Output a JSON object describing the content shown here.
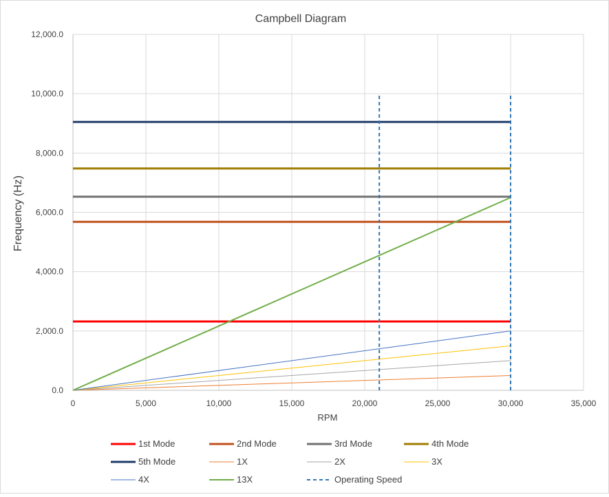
{
  "chart_data": {
    "type": "line",
    "title": "Campbell Diagram",
    "xlabel": "RPM",
    "ylabel": "Frequency (Hz)",
    "xlim": [
      0,
      35000
    ],
    "ylim": [
      0,
      12000
    ],
    "x_ticks": [
      0,
      5000,
      10000,
      15000,
      20000,
      25000,
      30000,
      35000
    ],
    "x_tick_labels": [
      "0",
      "5,000",
      "10,000",
      "15,000",
      "20,000",
      "25,000",
      "30,000",
      "35,000"
    ],
    "y_ticks": [
      0,
      2000,
      4000,
      6000,
      8000,
      10000,
      12000
    ],
    "y_tick_labels": [
      "0.0",
      "2,000.0",
      "4,000.0",
      "6,000.0",
      "8,000.0",
      "10,000.0",
      "12,000.0"
    ],
    "grid": true,
    "legend_position": "bottom",
    "series": [
      {
        "name": "1st Mode",
        "color": "#ff0000",
        "width": 3,
        "dash": "",
        "points": [
          [
            0,
            2320
          ],
          [
            30000,
            2320
          ]
        ]
      },
      {
        "name": "2nd Mode",
        "color": "#c0501c",
        "width": 3,
        "dash": "",
        "points": [
          [
            0,
            5680
          ],
          [
            30000,
            5680
          ]
        ]
      },
      {
        "name": "3rd Mode",
        "color": "#707070",
        "width": 3,
        "dash": "",
        "points": [
          [
            0,
            6530
          ],
          [
            30000,
            6530
          ]
        ]
      },
      {
        "name": "4th Mode",
        "color": "#a07c00",
        "width": 3,
        "dash": "",
        "points": [
          [
            0,
            7480
          ],
          [
            30000,
            7480
          ]
        ]
      },
      {
        "name": "5th Mode",
        "color": "#1f3a68",
        "width": 3,
        "dash": "",
        "points": [
          [
            0,
            9050
          ],
          [
            30000,
            9050
          ]
        ]
      },
      {
        "name": "1X",
        "color": "#ed7d31",
        "width": 1,
        "dash": "",
        "points": [
          [
            0,
            0
          ],
          [
            30000,
            500
          ]
        ]
      },
      {
        "name": "2X",
        "color": "#a5a5a5",
        "width": 1,
        "dash": "",
        "points": [
          [
            0,
            0
          ],
          [
            30000,
            1000
          ]
        ]
      },
      {
        "name": "3X",
        "color": "#ffc000",
        "width": 1,
        "dash": "",
        "points": [
          [
            0,
            0
          ],
          [
            30000,
            1500
          ]
        ]
      },
      {
        "name": "4X",
        "color": "#4472c4",
        "width": 1,
        "dash": "",
        "points": [
          [
            0,
            0
          ],
          [
            30000,
            2000
          ]
        ]
      },
      {
        "name": "13X",
        "color": "#70ad47",
        "width": 2,
        "dash": "",
        "points": [
          [
            0,
            0
          ],
          [
            30000,
            6500
          ]
        ]
      },
      {
        "name": "Operating Speed",
        "color": "#2e75b6",
        "width": 2,
        "dash": "5,4",
        "points": [
          [
            21000,
            0
          ],
          [
            21000,
            10000
          ],
          [
            null,
            null
          ],
          [
            30000,
            0
          ],
          [
            30000,
            10000
          ]
        ]
      }
    ]
  }
}
